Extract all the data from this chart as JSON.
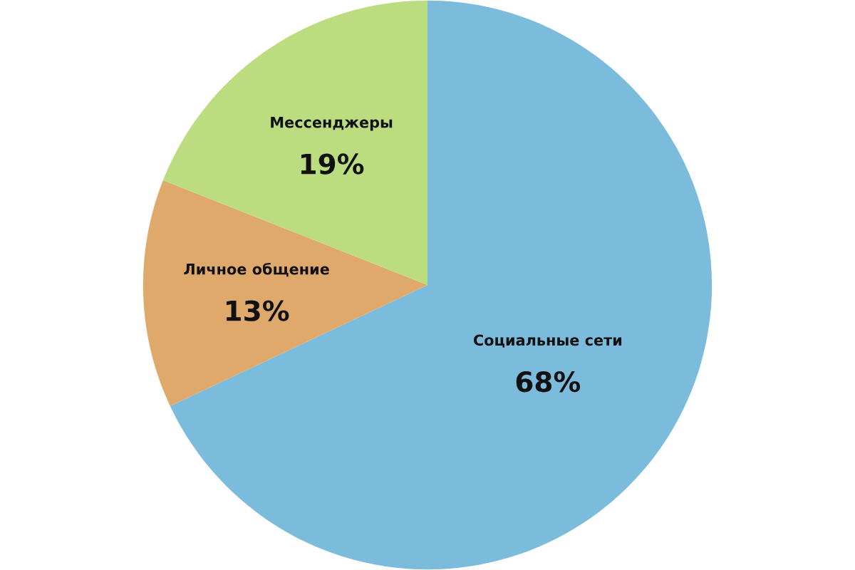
{
  "chart_data": {
    "type": "pie",
    "categories": [
      "Социальные сети",
      "Личное общение",
      "Мессенджеры"
    ],
    "values": [
      68,
      13,
      19
    ],
    "value_labels": [
      "68%",
      "13%",
      "19%"
    ],
    "colors": [
      "#7bbcdc",
      "#dfa96b",
      "#bbdd7f"
    ],
    "legend": false
  }
}
